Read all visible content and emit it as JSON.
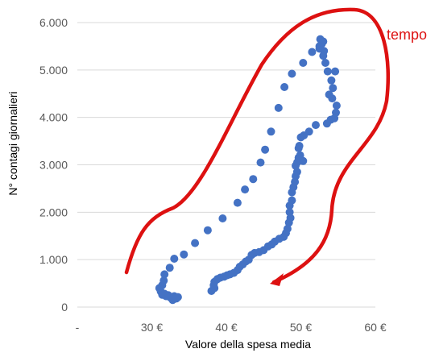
{
  "chart_data": {
    "type": "scatter",
    "title": "",
    "xlabel": "Valore della spesa media",
    "ylabel": "N° contagi giornalieri",
    "xlim": [
      20,
      60
    ],
    "ylim": [
      0,
      6000
    ],
    "grid": "horizontal",
    "x_ticks": [
      {
        "value": 20,
        "label": "-"
      },
      {
        "value": 30,
        "label": "30 €"
      },
      {
        "value": 40,
        "label": "40 €"
      },
      {
        "value": 50,
        "label": "50 €"
      },
      {
        "value": 60,
        "label": "60 €"
      }
    ],
    "y_ticks": [
      {
        "value": 0,
        "label": "0"
      },
      {
        "value": 1000,
        "label": "1.000"
      },
      {
        "value": 2000,
        "label": "2.000"
      },
      {
        "value": 3000,
        "label": "3.000"
      },
      {
        "value": 4000,
        "label": "4.000"
      },
      {
        "value": 5000,
        "label": "5.000"
      },
      {
        "value": 6000,
        "label": "6.000"
      }
    ],
    "marker_color": "#4472C4",
    "points": [
      [
        32.8,
        150
      ],
      [
        33.3,
        180
      ],
      [
        32.5,
        200
      ],
      [
        33.5,
        210
      ],
      [
        32.2,
        250
      ],
      [
        33.0,
        230
      ],
      [
        31.9,
        230
      ],
      [
        31.4,
        260
      ],
      [
        31.7,
        280
      ],
      [
        31.2,
        330
      ],
      [
        31.0,
        400
      ],
      [
        31.4,
        460
      ],
      [
        31.6,
        560
      ],
      [
        31.7,
        690
      ],
      [
        32.4,
        830
      ],
      [
        33.0,
        1020
      ],
      [
        34.3,
        1110
      ],
      [
        35.8,
        1350
      ],
      [
        37.5,
        1620
      ],
      [
        39.5,
        1870
      ],
      [
        41.5,
        2200
      ],
      [
        42.5,
        2480
      ],
      [
        43.6,
        2700
      ],
      [
        44.6,
        3050
      ],
      [
        45.2,
        3320
      ],
      [
        46.0,
        3700
      ],
      [
        47.0,
        4200
      ],
      [
        47.8,
        4640
      ],
      [
        48.8,
        4920
      ],
      [
        50.3,
        5150
      ],
      [
        51.5,
        5380
      ],
      [
        52.5,
        5500
      ],
      [
        52.6,
        5650
      ],
      [
        53.0,
        5600
      ],
      [
        52.8,
        5550
      ],
      [
        52.5,
        5450
      ],
      [
        53.1,
        5400
      ],
      [
        53.0,
        5300
      ],
      [
        53.3,
        5150
      ],
      [
        53.6,
        4970
      ],
      [
        54.6,
        4970
      ],
      [
        54.1,
        4780
      ],
      [
        54.3,
        4620
      ],
      [
        53.8,
        4480
      ],
      [
        54.2,
        4400
      ],
      [
        54.8,
        4250
      ],
      [
        54.7,
        4100
      ],
      [
        54.5,
        3980
      ],
      [
        54.0,
        3950
      ],
      [
        53.5,
        3870
      ],
      [
        52.0,
        3840
      ],
      [
        51.1,
        3700
      ],
      [
        50.4,
        3620
      ],
      [
        50.0,
        3580
      ],
      [
        49.8,
        3400
      ],
      [
        49.7,
        3350
      ],
      [
        49.9,
        3200
      ],
      [
        50.3,
        3080
      ],
      [
        49.7,
        3150
      ],
      [
        49.5,
        3050
      ],
      [
        49.3,
        2980
      ],
      [
        49.5,
        2850
      ],
      [
        49.3,
        2760
      ],
      [
        49.2,
        2640
      ],
      [
        49.0,
        2530
      ],
      [
        48.8,
        2420
      ],
      [
        48.8,
        2250
      ],
      [
        48.5,
        2140
      ],
      [
        48.5,
        2000
      ],
      [
        48.6,
        1880
      ],
      [
        48.4,
        1780
      ],
      [
        48.2,
        1650
      ],
      [
        48.0,
        1560
      ],
      [
        47.7,
        1480
      ],
      [
        47.1,
        1440
      ],
      [
        46.5,
        1380
      ],
      [
        46.1,
        1320
      ],
      [
        45.6,
        1280
      ],
      [
        45.0,
        1200
      ],
      [
        44.4,
        1160
      ],
      [
        43.8,
        1140
      ],
      [
        43.4,
        1100
      ],
      [
        43.0,
        1000
      ],
      [
        42.6,
        960
      ],
      [
        42.2,
        900
      ],
      [
        41.8,
        850
      ],
      [
        41.5,
        780
      ],
      [
        41.0,
        720
      ],
      [
        40.5,
        690
      ],
      [
        40.1,
        670
      ],
      [
        39.7,
        640
      ],
      [
        39.2,
        620
      ],
      [
        38.8,
        590
      ],
      [
        38.4,
        530
      ],
      [
        38.3,
        460
      ],
      [
        38.4,
        400
      ],
      [
        38.0,
        340
      ]
    ]
  },
  "annotation": {
    "label": "tempo",
    "color": "#DD1111"
  }
}
